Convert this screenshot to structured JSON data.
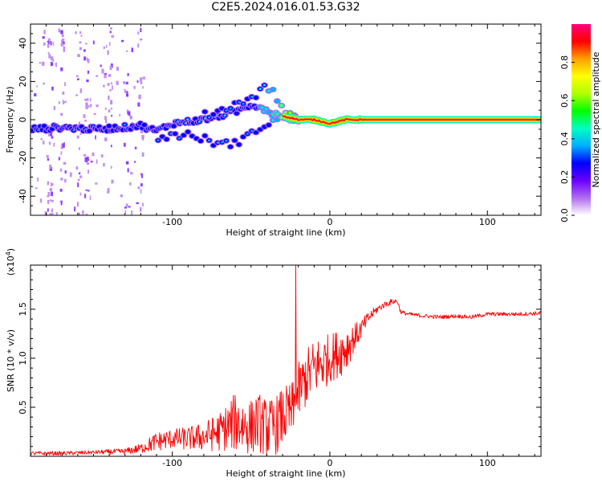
{
  "title": "C2E5.2024.016.01.53.G32",
  "chart_data": [
    {
      "type": "heatmap",
      "name": "spectrogram",
      "xlabel": "Height of straight line (km)",
      "ylabel": "Frequency (Hz)",
      "xlim": [
        -190,
        134
      ],
      "ylim": [
        -50,
        50
      ],
      "x_ticks": [
        -100,
        0,
        100
      ],
      "x_tick_labels": [
        "-100",
        "0",
        "100"
      ],
      "y_ticks": [
        -40,
        -20,
        0,
        20,
        40
      ],
      "y_tick_labels": [
        "-40",
        "-20",
        "0",
        "20",
        "40"
      ],
      "colorbar": {
        "label": "Normalized spectral amplitude",
        "range": [
          0,
          1
        ],
        "ticks": [
          0.0,
          0.2,
          0.4,
          0.6,
          0.8
        ],
        "tick_labels": [
          "0.0",
          "0.2",
          "0.4",
          "0.6",
          "0.8"
        ],
        "colors": [
          "#ffffff",
          "#b06cf0",
          "#6a00ff",
          "#0000ff",
          "#00b0ff",
          "#00ffc0",
          "#00ff00",
          "#b0ff00",
          "#ffff00",
          "#ffa000",
          "#ff0000",
          "#ff0080"
        ]
      },
      "ridge": {
        "description": "dominant frequency track",
        "x": [
          -190,
          -170,
          -150,
          -130,
          -120,
          -110,
          -100,
          -90,
          -80,
          -70,
          -60,
          -50,
          -45,
          -40,
          -35,
          -30,
          -25,
          -20,
          -10,
          0,
          5,
          10,
          20,
          134
        ],
        "y": [
          -5,
          -4,
          -5,
          -4,
          -3,
          -6,
          -2,
          -1,
          0,
          2,
          4,
          8,
          7,
          5,
          3,
          2,
          1,
          0,
          0,
          -2,
          -1,
          0,
          0,
          0
        ],
        "upper_branch_y": [
          null,
          null,
          null,
          null,
          null,
          null,
          null,
          null,
          2,
          5,
          8,
          12,
          14,
          18,
          14,
          6,
          2,
          0,
          0,
          -2,
          -1,
          0,
          0,
          0
        ],
        "lower_branch_y": [
          null,
          null,
          null,
          null,
          null,
          -10,
          -8,
          -8,
          -10,
          -13,
          -12,
          -8,
          -4,
          -2,
          0,
          0,
          0,
          0,
          0,
          -2,
          -1,
          0,
          0,
          0
        ],
        "amplitude": [
          0.35,
          0.4,
          0.38,
          0.35,
          0.35,
          0.4,
          0.45,
          0.45,
          0.45,
          0.45,
          0.45,
          0.45,
          0.45,
          0.5,
          0.6,
          0.75,
          0.8,
          0.85,
          0.9,
          0.9,
          0.9,
          0.95,
          1.0,
          1.0
        ]
      }
    },
    {
      "type": "line",
      "name": "snr",
      "xlabel": "Height of straight line (km)",
      "ylabel": "SNR (10 * v/v)",
      "y_scale_label": "(x10",
      "y_scale_exp": "4",
      "y_scale_close": ")",
      "xlim": [
        -190,
        134
      ],
      "ylim": [
        0,
        1.95
      ],
      "x_ticks": [
        -100,
        0,
        100
      ],
      "x_tick_labels": [
        "-100",
        "0",
        "100"
      ],
      "y_ticks": [
        0.5,
        1.0,
        1.5
      ],
      "y_tick_labels": [
        "0.5",
        "1.0",
        "1.5"
      ],
      "color": "#ff0000",
      "series": [
        {
          "name": "SNR",
          "x": [
            -190,
            -170,
            -150,
            -130,
            -120,
            -110,
            -100,
            -90,
            -80,
            -70,
            -65,
            -60,
            -55,
            -50,
            -45,
            -40,
            -35,
            -30,
            -25,
            -22,
            -20,
            -15,
            -10,
            -5,
            0,
            5,
            10,
            15,
            20,
            25,
            30,
            35,
            40,
            43,
            45,
            50,
            60,
            70,
            80,
            90,
            100,
            110,
            120,
            134
          ],
          "y": [
            0.03,
            0.03,
            0.04,
            0.05,
            0.08,
            0.15,
            0.18,
            0.18,
            0.2,
            0.25,
            0.3,
            0.35,
            0.32,
            0.3,
            0.35,
            0.28,
            0.3,
            0.4,
            0.45,
            0.5,
            0.65,
            0.8,
            0.9,
            0.95,
            1.0,
            1.05,
            1.1,
            1.2,
            1.3,
            1.42,
            1.5,
            1.55,
            1.58,
            1.58,
            1.47,
            1.45,
            1.43,
            1.42,
            1.43,
            1.42,
            1.45,
            1.45,
            1.45,
            1.46
          ],
          "noise": [
            0.02,
            0.02,
            0.02,
            0.03,
            0.05,
            0.1,
            0.1,
            0.12,
            0.15,
            0.2,
            0.25,
            0.3,
            0.3,
            0.28,
            0.3,
            0.3,
            0.3,
            0.3,
            0.3,
            0.3,
            0.3,
            0.3,
            0.3,
            0.3,
            0.25,
            0.25,
            0.25,
            0.15,
            0.1,
            0.06,
            0.04,
            0.03,
            0.03,
            0.03,
            0.02,
            0.02,
            0.02,
            0.02,
            0.02,
            0.02,
            0.02,
            0.02,
            0.02,
            0.02
          ]
        }
      ],
      "spike": {
        "x": -21.5,
        "y": 1.95
      }
    }
  ]
}
